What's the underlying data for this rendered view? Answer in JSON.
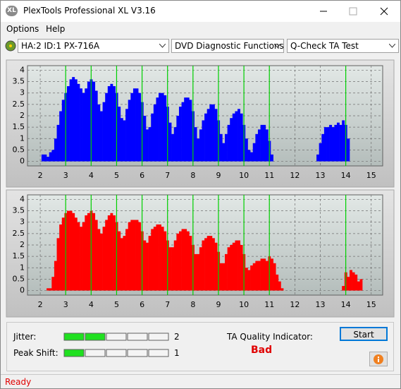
{
  "window": {
    "icon_text": "XL",
    "title": "PlexTools Professional XL V3.16"
  },
  "menu": [
    "Options",
    "Help"
  ],
  "toolbar": {
    "drive": "HA:2 ID:1  PX-716A",
    "function": "DVD Diagnostic Functions",
    "test": "Q-Check TA Test"
  },
  "charts": [
    {
      "type": "bar",
      "color": "#0000ff",
      "x": [
        2,
        2.1,
        2.2,
        2.3,
        2.4,
        2.5,
        2.6,
        2.7,
        2.8,
        2.9,
        3,
        3.1,
        3.2,
        3.3,
        3.4,
        3.5,
        3.6,
        3.7,
        3.8,
        3.9,
        4,
        4.1,
        4.2,
        4.3,
        4.4,
        4.5,
        4.6,
        4.7,
        4.8,
        4.9,
        5,
        5.1,
        5.2,
        5.3,
        5.4,
        5.5,
        5.6,
        5.7,
        5.8,
        5.9,
        6,
        6.1,
        6.2,
        6.3,
        6.4,
        6.5,
        6.6,
        6.7,
        6.8,
        6.9,
        7,
        7.1,
        7.2,
        7.3,
        7.4,
        7.5,
        7.6,
        7.7,
        7.8,
        7.9,
        8,
        8.1,
        8.2,
        8.3,
        8.4,
        8.5,
        8.6,
        8.7,
        8.8,
        8.9,
        9,
        9.1,
        9.2,
        9.3,
        9.4,
        9.5,
        9.6,
        9.7,
        9.8,
        9.9,
        10,
        10.1,
        10.2,
        10.3,
        10.4,
        10.5,
        10.6,
        10.7,
        10.8,
        10.9,
        11,
        11.1,
        11.2,
        11.3,
        11.4,
        11.5,
        11.6,
        11.7,
        11.8,
        11.9,
        12,
        12.1,
        12.2,
        12.3,
        12.4,
        12.5,
        12.6,
        12.7,
        12.8,
        12.9,
        13,
        13.1,
        13.2,
        13.3,
        13.4,
        13.5,
        13.6,
        13.7,
        13.8,
        13.9,
        14,
        14.1,
        14.2,
        14.3,
        14.4,
        14.5,
        14.6,
        14.7,
        14.8,
        14.9
      ],
      "values": [
        0,
        0.3,
        0.3,
        0.2,
        0.4,
        0.5,
        1.0,
        1.6,
        2.2,
        2.7,
        3.0,
        3.3,
        3.6,
        3.7,
        3.6,
        3.4,
        3.2,
        3.0,
        3.2,
        3.5,
        3.6,
        3.5,
        3.1,
        2.5,
        2.2,
        2.6,
        3.0,
        3.3,
        3.4,
        3.3,
        3.0,
        2.4,
        1.9,
        1.8,
        2.3,
        2.7,
        3.0,
        3.2,
        3.2,
        3.0,
        2.6,
        2.0,
        1.4,
        1.5,
        2.1,
        2.5,
        2.8,
        3.0,
        3.0,
        2.9,
        2.4,
        1.7,
        1.2,
        1.5,
        2.0,
        2.4,
        2.6,
        2.8,
        2.8,
        2.7,
        2.2,
        1.5,
        1.0,
        1.4,
        1.8,
        2.1,
        2.3,
        2.5,
        2.5,
        2.3,
        1.8,
        1.2,
        0.8,
        1.2,
        1.6,
        1.9,
        2.1,
        2.2,
        2.3,
        2.1,
        1.6,
        1.0,
        0.5,
        0.4,
        0.8,
        1.2,
        1.4,
        1.6,
        1.6,
        1.4,
        0.9,
        0.3,
        0,
        0,
        0,
        0,
        0,
        0,
        0,
        0,
        0,
        0,
        0,
        0,
        0,
        0,
        0,
        0,
        0,
        0.3,
        0.8,
        1.2,
        1.5,
        1.5,
        1.6,
        1.5,
        1.6,
        1.7,
        1.6,
        1.8,
        1.6,
        1.0,
        0,
        0,
        0,
        0,
        0,
        0,
        0,
        0
      ],
      "xlim": [
        1.5,
        15.45
      ],
      "ylim": [
        -0.2,
        4.2
      ],
      "xticks": [
        2,
        3,
        4,
        5,
        6,
        7,
        8,
        9,
        10,
        11,
        12,
        13,
        14,
        15
      ],
      "yticks": [
        0,
        0.5,
        1,
        1.5,
        2,
        2.5,
        3,
        3.5,
        4
      ],
      "grid": true,
      "highlight_x": [
        3,
        4,
        5,
        6,
        7,
        8,
        9,
        10,
        11,
        14
      ],
      "highlight_color": "#00d000"
    },
    {
      "type": "bar",
      "color": "#ff0000",
      "x": [
        2,
        2.1,
        2.2,
        2.3,
        2.4,
        2.5,
        2.6,
        2.7,
        2.8,
        2.9,
        3,
        3.1,
        3.2,
        3.3,
        3.4,
        3.5,
        3.6,
        3.7,
        3.8,
        3.9,
        4,
        4.1,
        4.2,
        4.3,
        4.4,
        4.5,
        4.6,
        4.7,
        4.8,
        4.9,
        5,
        5.1,
        5.2,
        5.3,
        5.4,
        5.5,
        5.6,
        5.7,
        5.8,
        5.9,
        6,
        6.1,
        6.2,
        6.3,
        6.4,
        6.5,
        6.6,
        6.7,
        6.8,
        6.9,
        7,
        7.1,
        7.2,
        7.3,
        7.4,
        7.5,
        7.6,
        7.7,
        7.8,
        7.9,
        8,
        8.1,
        8.2,
        8.3,
        8.4,
        8.5,
        8.6,
        8.7,
        8.8,
        8.9,
        9,
        9.1,
        9.2,
        9.3,
        9.4,
        9.5,
        9.6,
        9.7,
        9.8,
        9.9,
        10,
        10.1,
        10.2,
        10.3,
        10.4,
        10.5,
        10.6,
        10.7,
        10.8,
        10.9,
        11,
        11.1,
        11.2,
        11.3,
        11.4,
        11.5,
        11.6,
        11.7,
        11.8,
        11.9,
        12,
        12.1,
        12.2,
        12.3,
        12.4,
        12.5,
        12.6,
        12.7,
        12.8,
        12.9,
        13,
        13.1,
        13.2,
        13.3,
        13.4,
        13.5,
        13.6,
        13.7,
        13.8,
        13.9,
        14,
        14.1,
        14.2,
        14.3,
        14.4,
        14.5,
        14.6,
        14.7,
        14.8,
        14.9
      ],
      "values": [
        0,
        0,
        0,
        0.1,
        0.1,
        0.6,
        1.3,
        2.3,
        2.9,
        3.2,
        3.4,
        3.5,
        3.5,
        3.4,
        3.2,
        3.0,
        2.8,
        3.0,
        3.3,
        3.4,
        3.5,
        3.4,
        3.1,
        2.7,
        2.5,
        2.8,
        3.1,
        3.3,
        3.4,
        3.3,
        3.0,
        2.6,
        2.3,
        2.4,
        2.7,
        3.0,
        3.1,
        3.1,
        3.1,
        3.0,
        2.6,
        2.2,
        2.1,
        2.4,
        2.7,
        2.8,
        2.9,
        2.9,
        2.8,
        2.6,
        2.2,
        1.9,
        1.9,
        2.2,
        2.5,
        2.6,
        2.7,
        2.7,
        2.6,
        2.4,
        2.0,
        1.6,
        1.6,
        1.9,
        2.2,
        2.3,
        2.4,
        2.4,
        2.3,
        2.1,
        1.7,
        1.2,
        1.2,
        1.6,
        1.9,
        2.0,
        2.1,
        2.2,
        2.2,
        2.0,
        1.6,
        1.0,
        0.9,
        1.1,
        1.2,
        1.3,
        1.3,
        1.4,
        1.4,
        1.3,
        1.5,
        1.4,
        1.2,
        0.7,
        0.4,
        0.1,
        0,
        0,
        0,
        0,
        0,
        0,
        0,
        0,
        0,
        0,
        0,
        0,
        0,
        0,
        0,
        0,
        0,
        0,
        0,
        0,
        0,
        0,
        0,
        0.2,
        0.8,
        0.6,
        0.9,
        0.8,
        0.7,
        0.4,
        0.5,
        0,
        0,
        0
      ],
      "xlim": [
        1.5,
        15.45
      ],
      "ylim": [
        -0.2,
        4.2
      ],
      "xticks": [
        2,
        3,
        4,
        5,
        6,
        7,
        8,
        9,
        10,
        11,
        12,
        13,
        14,
        15
      ],
      "yticks": [
        0,
        0.5,
        1,
        1.5,
        2,
        2.5,
        3,
        3.5,
        4
      ],
      "grid": true,
      "highlight_x": [
        3,
        4,
        5,
        6,
        7,
        8,
        9,
        10,
        11,
        14
      ],
      "highlight_color": "#00d000"
    }
  ],
  "results": {
    "jitter": {
      "label": "Jitter:",
      "value": 2
    },
    "peak_shift": {
      "label": "Peak Shift:",
      "value": 1
    },
    "ta_label": "TA Quality Indicator:",
    "ta_value": "Bad",
    "start": "Start"
  },
  "status": "Ready"
}
